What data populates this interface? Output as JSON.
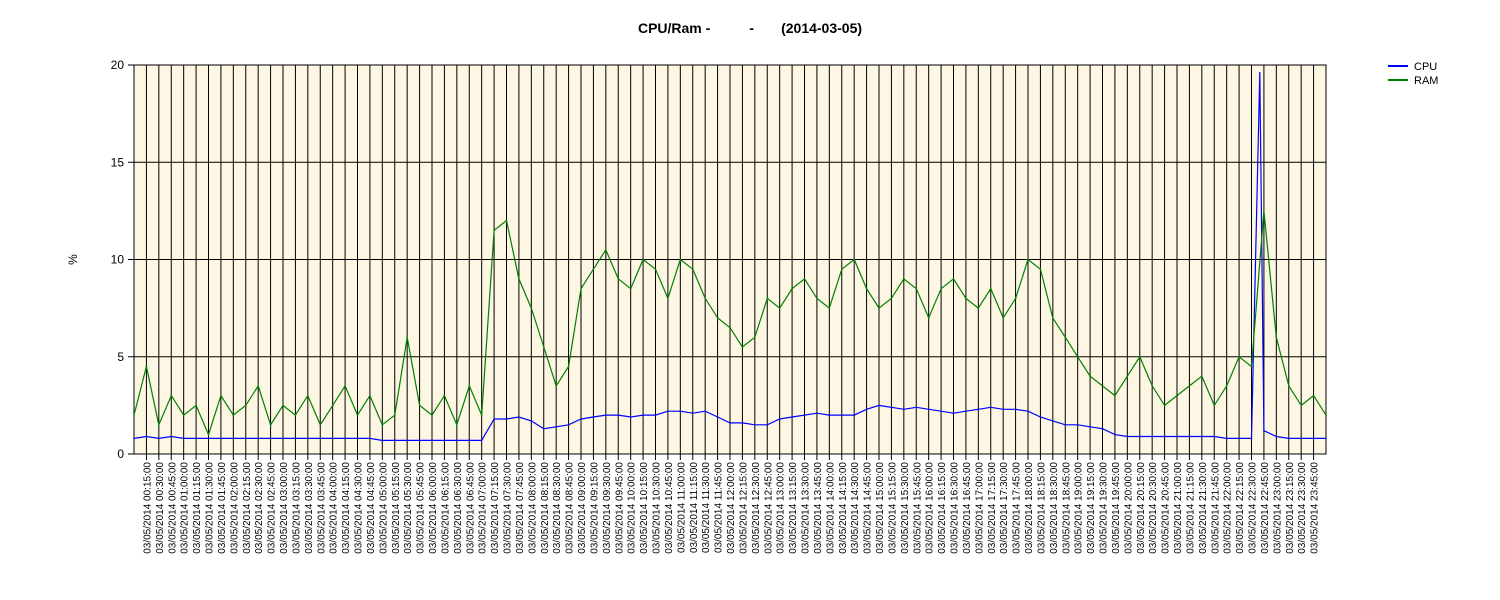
{
  "chart_data": {
    "type": "line",
    "title": "CPU/Ram -          -       (2014-03-05)",
    "xlabel": "",
    "ylabel": "%",
    "ylim": [
      0,
      20
    ],
    "yticks": [
      0,
      5,
      10,
      15,
      20
    ],
    "grid": true,
    "legend_position": "top-right",
    "x_start": "03/05/2014 00:00",
    "x_end": "03/05/2014 24:00",
    "x_tick_labels": [
      "03/05/2014 00:15:00",
      "03/05/2014 00:30:00",
      "03/05/2014 00:45:00",
      "03/05/2014 01:00:00",
      "03/05/2014 01:15:00",
      "03/05/2014 01:30:00",
      "03/05/2014 01:45:00",
      "03/05/2014 02:00:00",
      "03/05/2014 02:15:00",
      "03/05/2014 02:30:00",
      "03/05/2014 02:45:00",
      "03/05/2014 03:00:00",
      "03/05/2014 03:15:00",
      "03/05/2014 03:30:00",
      "03/05/2014 03:45:00",
      "03/05/2014 04:00:00",
      "03/05/2014 04:15:00",
      "03/05/2014 04:30:00",
      "03/05/2014 04:45:00",
      "03/05/2014 05:00:00",
      "03/05/2014 05:15:00",
      "03/05/2014 05:30:00",
      "03/05/2014 05:45:00",
      "03/05/2014 06:00:00",
      "03/05/2014 06:15:00",
      "03/05/2014 06:30:00",
      "03/05/2014 06:45:00",
      "03/05/2014 07:00:00",
      "03/05/2014 07:15:00",
      "03/05/2014 07:30:00",
      "03/05/2014 07:45:00",
      "03/05/2014 08:00:00",
      "03/05/2014 08:15:00",
      "03/05/2014 08:30:00",
      "03/05/2014 08:45:00",
      "03/05/2014 09:00:00",
      "03/05/2014 09:15:00",
      "03/05/2014 09:30:00",
      "03/05/2014 09:45:00",
      "03/05/2014 10:00:00",
      "03/05/2014 10:15:00",
      "03/05/2014 10:30:00",
      "03/05/2014 10:45:00",
      "03/05/2014 11:00:00",
      "03/05/2014 11:15:00",
      "03/05/2014 11:30:00",
      "03/05/2014 11:45:00",
      "03/05/2014 12:00:00",
      "03/05/2014 12:15:00",
      "03/05/2014 12:30:00",
      "03/05/2014 12:45:00",
      "03/05/2014 13:00:00",
      "03/05/2014 13:15:00",
      "03/05/2014 13:30:00",
      "03/05/2014 13:45:00",
      "03/05/2014 14:00:00",
      "03/05/2014 14:15:00",
      "03/05/2014 14:30:00",
      "03/05/2014 14:45:00",
      "03/05/2014 15:00:00",
      "03/05/2014 15:15:00",
      "03/05/2014 15:30:00",
      "03/05/2014 15:45:00",
      "03/05/2014 16:00:00",
      "03/05/2014 16:15:00",
      "03/05/2014 16:30:00",
      "03/05/2014 16:45:00",
      "03/05/2014 17:00:00",
      "03/05/2014 17:15:00",
      "03/05/2014 17:30:00",
      "03/05/2014 17:45:00",
      "03/05/2014 18:00:00",
      "03/05/2014 18:15:00",
      "03/05/2014 18:30:00",
      "03/05/2014 18:45:00",
      "03/05/2014 19:00:00",
      "03/05/2014 19:15:00",
      "03/05/2014 19:30:00",
      "03/05/2014 19:45:00",
      "03/05/2014 20:00:00",
      "03/05/2014 20:15:00",
      "03/05/2014 20:30:00",
      "03/05/2014 20:45:00",
      "03/05/2014 21:00:00",
      "03/05/2014 21:15:00",
      "03/05/2014 21:30:00",
      "03/05/2014 21:45:00",
      "03/05/2014 22:00:00",
      "03/05/2014 22:15:00",
      "03/05/2014 22:30:00",
      "03/05/2014 22:45:00",
      "03/05/2014 23:00:00",
      "03/05/2014 23:15:00",
      "03/05/2014 23:30:00",
      "03/05/2014 23:45:00"
    ],
    "series": [
      {
        "name": "CPU",
        "color": "#0000ff",
        "x": [
          "00:00",
          "00:15",
          "00:30",
          "00:45",
          "01:00",
          "01:15",
          "01:30",
          "01:45",
          "02:00",
          "02:15",
          "02:30",
          "02:45",
          "03:00",
          "03:15",
          "03:30",
          "03:45",
          "04:00",
          "04:15",
          "04:30",
          "04:45",
          "05:00",
          "05:15",
          "05:30",
          "05:45",
          "06:00",
          "06:15",
          "06:30",
          "06:45",
          "07:00",
          "07:15",
          "07:30",
          "07:45",
          "08:00",
          "08:15",
          "08:30",
          "08:45",
          "09:00",
          "09:15",
          "09:30",
          "09:45",
          "10:00",
          "10:15",
          "10:30",
          "10:45",
          "11:00",
          "11:15",
          "11:30",
          "11:45",
          "12:00",
          "12:15",
          "12:30",
          "12:45",
          "13:00",
          "13:15",
          "13:30",
          "13:45",
          "14:00",
          "14:15",
          "14:30",
          "14:45",
          "15:00",
          "15:15",
          "15:30",
          "15:45",
          "16:00",
          "16:15",
          "16:30",
          "16:45",
          "17:00",
          "17:15",
          "17:30",
          "17:45",
          "18:00",
          "18:15",
          "18:30",
          "18:45",
          "19:00",
          "19:15",
          "19:30",
          "19:45",
          "20:00",
          "20:15",
          "20:30",
          "20:45",
          "21:00",
          "21:15",
          "21:30",
          "21:45",
          "22:00",
          "22:15",
          "22:30",
          "22:40",
          "22:45",
          "23:00",
          "23:15",
          "23:30",
          "23:45",
          "24:00"
        ],
        "values": [
          0.8,
          0.9,
          0.8,
          0.9,
          0.8,
          0.8,
          0.8,
          0.8,
          0.8,
          0.8,
          0.8,
          0.8,
          0.8,
          0.8,
          0.8,
          0.8,
          0.8,
          0.8,
          0.8,
          0.8,
          0.7,
          0.7,
          0.7,
          0.7,
          0.7,
          0.7,
          0.7,
          0.7,
          0.7,
          1.8,
          1.8,
          1.9,
          1.7,
          1.3,
          1.4,
          1.5,
          1.8,
          1.9,
          2.0,
          2.0,
          1.9,
          2.0,
          2.0,
          2.2,
          2.2,
          2.1,
          2.2,
          1.9,
          1.6,
          1.6,
          1.5,
          1.5,
          1.8,
          1.9,
          2.0,
          2.1,
          2.0,
          2.0,
          2.0,
          2.3,
          2.5,
          2.4,
          2.3,
          2.4,
          2.3,
          2.2,
          2.1,
          2.2,
          2.3,
          2.4,
          2.3,
          2.3,
          2.2,
          1.9,
          1.7,
          1.5,
          1.5,
          1.4,
          1.3,
          1.0,
          0.9,
          0.9,
          0.9,
          0.9,
          0.9,
          0.9,
          0.9,
          0.9,
          0.8,
          0.8,
          0.8,
          19.6,
          1.2,
          0.9,
          0.8,
          0.8,
          0.8,
          0.8
        ]
      },
      {
        "name": "RAM",
        "color": "#008000",
        "x": [
          "00:00",
          "00:15",
          "00:30",
          "00:45",
          "01:00",
          "01:15",
          "01:30",
          "01:45",
          "02:00",
          "02:15",
          "02:30",
          "02:45",
          "03:00",
          "03:15",
          "03:30",
          "03:45",
          "04:00",
          "04:15",
          "04:30",
          "04:45",
          "05:00",
          "05:15",
          "05:30",
          "05:45",
          "06:00",
          "06:15",
          "06:30",
          "06:45",
          "07:00",
          "07:15",
          "07:30",
          "07:45",
          "08:00",
          "08:15",
          "08:30",
          "08:45",
          "09:00",
          "09:15",
          "09:30",
          "09:45",
          "10:00",
          "10:15",
          "10:30",
          "10:45",
          "11:00",
          "11:15",
          "11:30",
          "11:45",
          "12:00",
          "12:15",
          "12:30",
          "12:45",
          "13:00",
          "13:15",
          "13:30",
          "13:45",
          "14:00",
          "14:15",
          "14:30",
          "14:45",
          "15:00",
          "15:15",
          "15:30",
          "15:45",
          "16:00",
          "16:15",
          "16:30",
          "16:45",
          "17:00",
          "17:15",
          "17:30",
          "17:45",
          "18:00",
          "18:15",
          "18:30",
          "18:45",
          "19:00",
          "19:15",
          "19:30",
          "19:45",
          "20:00",
          "20:15",
          "20:30",
          "20:45",
          "21:00",
          "21:15",
          "21:30",
          "21:45",
          "22:00",
          "22:15",
          "22:30",
          "22:45",
          "23:00",
          "23:15",
          "23:30",
          "23:45",
          "24:00"
        ],
        "values": [
          2.0,
          4.5,
          1.5,
          3.0,
          2.0,
          2.5,
          1.0,
          3.0,
          2.0,
          2.5,
          3.5,
          1.5,
          2.5,
          2.0,
          3.0,
          1.5,
          2.5,
          3.5,
          2.0,
          3.0,
          1.5,
          2.0,
          6.0,
          2.5,
          2.0,
          3.0,
          1.5,
          3.5,
          2.0,
          11.5,
          12.0,
          9.0,
          7.5,
          5.5,
          3.5,
          4.5,
          8.5,
          9.5,
          10.5,
          9.0,
          8.5,
          10.0,
          9.5,
          8.0,
          10.0,
          9.5,
          8.0,
          7.0,
          6.5,
          5.5,
          6.0,
          8.0,
          7.5,
          8.5,
          9.0,
          8.0,
          7.5,
          9.5,
          10.0,
          8.5,
          7.5,
          8.0,
          9.0,
          8.5,
          7.0,
          8.5,
          9.0,
          8.0,
          7.5,
          8.5,
          7.0,
          8.0,
          10.0,
          9.5,
          7.0,
          6.0,
          5.0,
          4.0,
          3.5,
          3.0,
          4.0,
          5.0,
          3.5,
          2.5,
          3.0,
          3.5,
          4.0,
          2.5,
          3.5,
          5.0,
          4.5,
          12.5,
          6.0,
          3.5,
          2.5,
          3.0,
          2.0
        ]
      }
    ]
  }
}
